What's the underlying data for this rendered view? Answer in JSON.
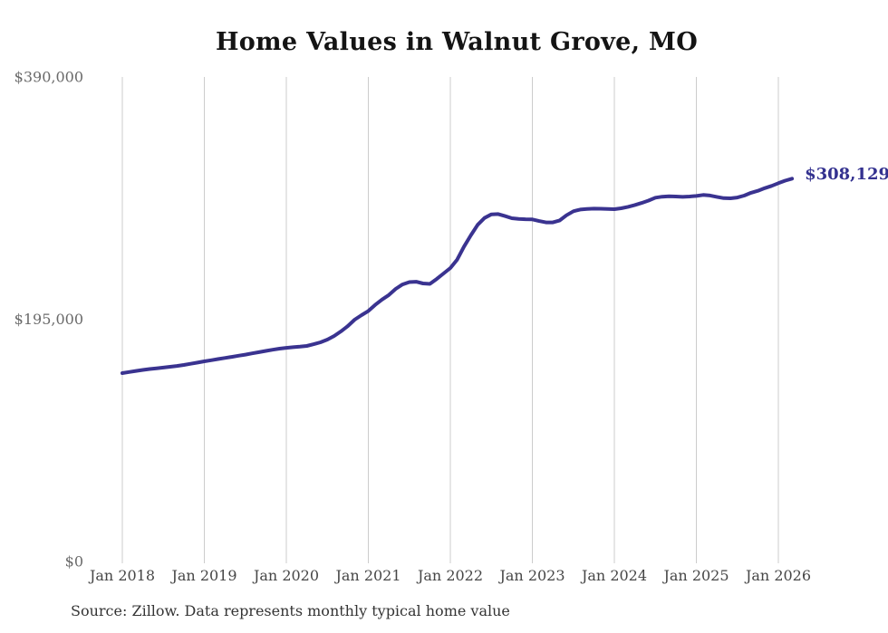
{
  "page": {
    "title": "Home Values in Walnut Grove, MO",
    "source_note": "Source: Zillow. Data represents monthly typical home value"
  },
  "chart_data": {
    "type": "line",
    "title": "Home Values in Walnut Grove, MO",
    "series_name": "Monthly typical home value",
    "unit": "USD",
    "grid": "vertical-only",
    "legend": "none",
    "line_color": "#3a3390",
    "end_label_color": "#33318f",
    "gridline_color": "#cccccc",
    "end_label": "$308,129",
    "end_value": 308129,
    "ylim": [
      0,
      390000
    ],
    "y_ticks": [
      {
        "value": 390000,
        "label": "$390,000"
      },
      {
        "value": 195000,
        "label": "$195,000"
      },
      {
        "value": 0,
        "label": "$0"
      }
    ],
    "x_tick_labels": [
      "Jan 2018",
      "Jan 2019",
      "Jan 2020",
      "Jan 2021",
      "Jan 2022",
      "Jan 2023",
      "Jan 2024",
      "Jan 2025",
      "Jan 2026"
    ],
    "x": [
      "2018-01",
      "2018-02",
      "2018-03",
      "2018-04",
      "2018-05",
      "2018-06",
      "2018-07",
      "2018-08",
      "2018-09",
      "2018-10",
      "2018-11",
      "2018-12",
      "2019-01",
      "2019-02",
      "2019-03",
      "2019-04",
      "2019-05",
      "2019-06",
      "2019-07",
      "2019-08",
      "2019-09",
      "2019-10",
      "2019-11",
      "2019-12",
      "2020-01",
      "2020-02",
      "2020-03",
      "2020-04",
      "2020-05",
      "2020-06",
      "2020-07",
      "2020-08",
      "2020-09",
      "2020-10",
      "2020-11",
      "2020-12",
      "2021-01",
      "2021-02",
      "2021-03",
      "2021-04",
      "2021-05",
      "2021-06",
      "2021-07",
      "2021-08",
      "2021-09",
      "2021-10",
      "2021-11",
      "2021-12",
      "2022-01",
      "2022-02",
      "2022-03",
      "2022-04",
      "2022-05",
      "2022-06",
      "2022-07",
      "2022-08",
      "2022-09",
      "2022-10",
      "2022-11",
      "2022-12",
      "2023-01",
      "2023-02",
      "2023-03",
      "2023-04",
      "2023-05",
      "2023-06",
      "2023-07",
      "2023-08",
      "2023-09",
      "2023-10",
      "2023-11",
      "2023-12",
      "2024-01",
      "2024-02",
      "2024-03",
      "2024-04",
      "2024-05",
      "2024-06",
      "2024-07",
      "2024-08",
      "2024-09",
      "2024-10",
      "2024-11",
      "2024-12",
      "2025-01",
      "2025-02",
      "2025-03",
      "2025-04",
      "2025-05",
      "2025-06",
      "2025-07",
      "2025-08",
      "2025-09",
      "2025-10",
      "2025-11",
      "2025-12",
      "2026-01",
      "2026-02",
      "2026-03"
    ],
    "values": [
      151600,
      152500,
      153400,
      154200,
      154900,
      155500,
      156100,
      156700,
      157400,
      158200,
      159100,
      160100,
      161100,
      162000,
      162900,
      163800,
      164700,
      165600,
      166500,
      167500,
      168500,
      169500,
      170400,
      171300,
      172000,
      172500,
      172900,
      173500,
      174900,
      176400,
      178600,
      181500,
      185200,
      189500,
      194600,
      198300,
      201600,
      206500,
      210800,
      214500,
      219400,
      223000,
      224900,
      225200,
      223800,
      223400,
      227400,
      231800,
      236200,
      243000,
      253500,
      262500,
      271000,
      276500,
      279400,
      279600,
      278000,
      276300,
      275800,
      275500,
      275300,
      274000,
      272900,
      272900,
      274500,
      278700,
      281900,
      283300,
      283800,
      284000,
      283900,
      283700,
      283600,
      284300,
      285500,
      286900,
      288600,
      290500,
      292800,
      293600,
      294000,
      293800,
      293500,
      293800,
      294200,
      295000,
      294600,
      293500,
      292500,
      292300,
      293000,
      294500,
      296800,
      298400,
      300500,
      302300,
      304500,
      306500,
      308129
    ],
    "source": "Source: Zillow. Data represents monthly typical home value"
  }
}
